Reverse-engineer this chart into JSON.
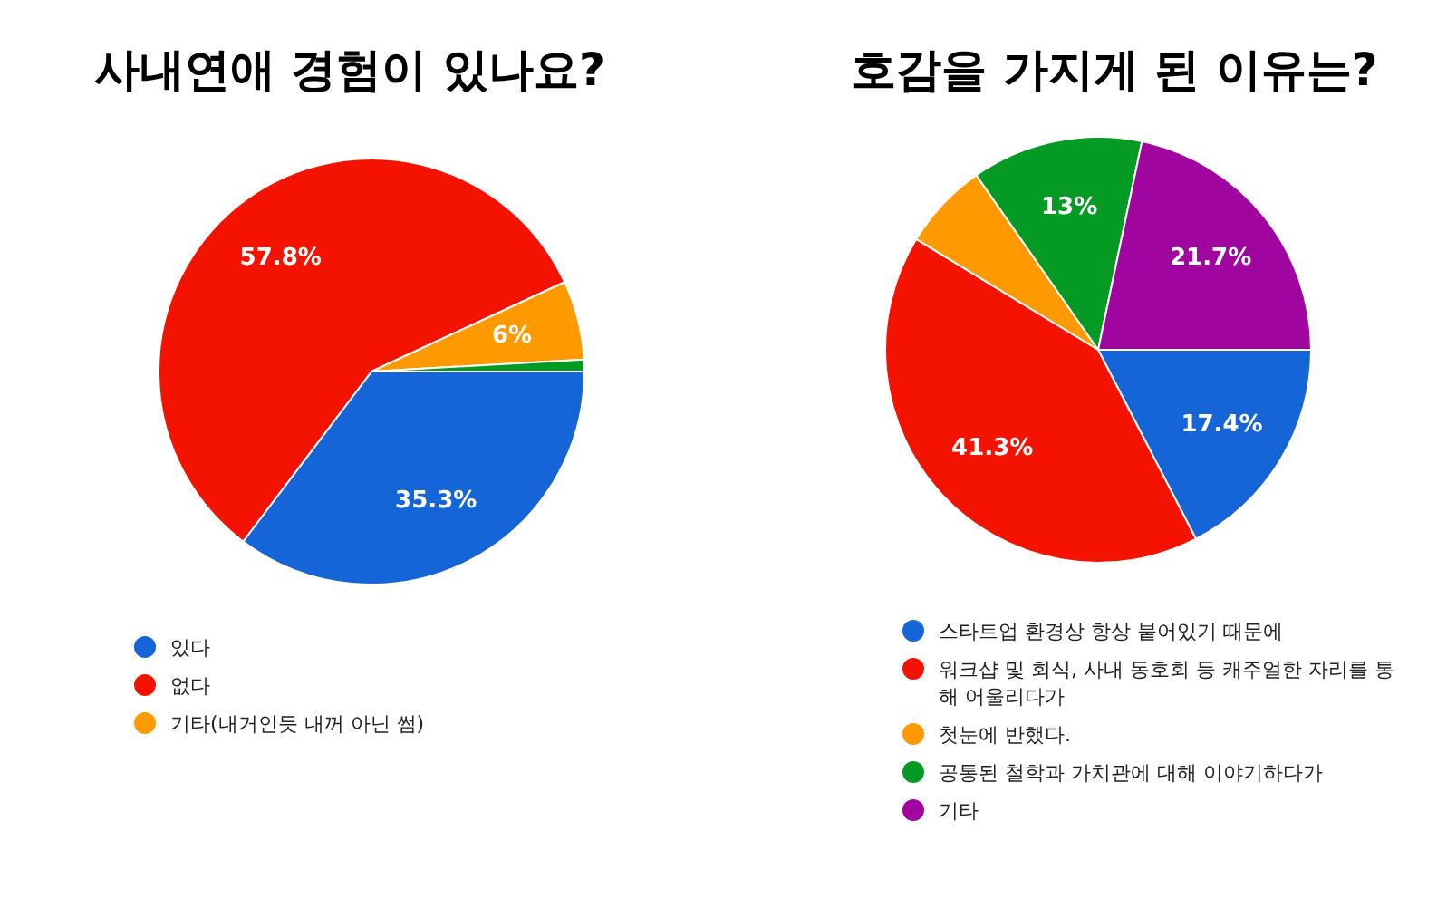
{
  "chart_data": [
    {
      "type": "pie",
      "title": "사내연애 경험이 있나요?",
      "categories": [
        "있다",
        "없다",
        "기타(내거인듯 내꺼 아닌 썸)",
        null
      ],
      "values": [
        35.3,
        57.8,
        6,
        0.9
      ],
      "colors": [
        "#1565d8",
        "#f41300",
        "#ff9900",
        "#049a24"
      ],
      "value_labels": [
        "35.3%",
        "57.8%",
        "6%",
        null
      ],
      "legend": "bottom"
    },
    {
      "type": "pie",
      "title": "호감을 가지게 된 이유는?",
      "categories": [
        "스타트업 환경상 항상 붙어있기 때문에",
        "워크샵 및 회식, 사내 동호회 등 캐주얼한 자리를 통해 어울리다가",
        "첫눈에 반했다.",
        "공통된 철학과 가치관에 대해 이야기하다가",
        "기타"
      ],
      "values": [
        17.4,
        41.3,
        6.6,
        13,
        21.7
      ],
      "colors": [
        "#1565d8",
        "#f41300",
        "#ff9900",
        "#049a24",
        "#a0069f"
      ],
      "value_labels": [
        "17.4%",
        "41.3%",
        null,
        "13%",
        "21.7%"
      ],
      "legend": "bottom"
    }
  ]
}
